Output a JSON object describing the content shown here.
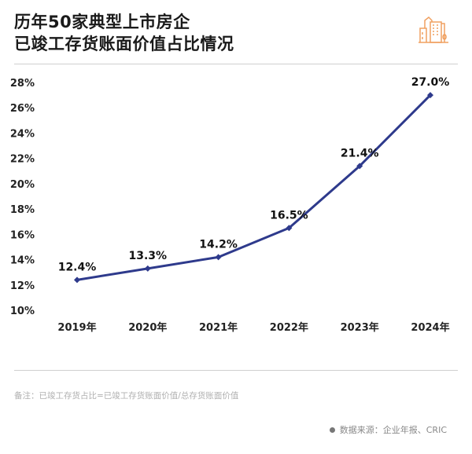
{
  "title_lines": [
    "历年50家典型上市房企",
    "已竣工存货账面价值占比情况"
  ],
  "logo_icon": "city-buildings-icon",
  "colors": {
    "line": "#2e3a8c",
    "logo": "#f0a060"
  },
  "note": "备注：已竣工存货占比=已竣工存货账面价值/总存货账面价值",
  "source": "数据来源：企业年报、CRIC",
  "chart_data": {
    "type": "line",
    "categories": [
      "2019年",
      "2020年",
      "2021年",
      "2022年",
      "2023年",
      "2024年"
    ],
    "series": [
      {
        "values": [
          12.4,
          13.3,
          14.2,
          16.5,
          21.4,
          27.0
        ]
      }
    ],
    "data_labels": [
      "12.4%",
      "13.3%",
      "14.2%",
      "16.5%",
      "21.4%",
      "27.0%"
    ],
    "ylim": [
      10,
      28
    ],
    "yticks": [
      "10%",
      "12%",
      "14%",
      "16%",
      "18%",
      "20%",
      "22%",
      "24%",
      "26%",
      "28%"
    ],
    "grid": false,
    "xlabel": "",
    "ylabel": ""
  }
}
